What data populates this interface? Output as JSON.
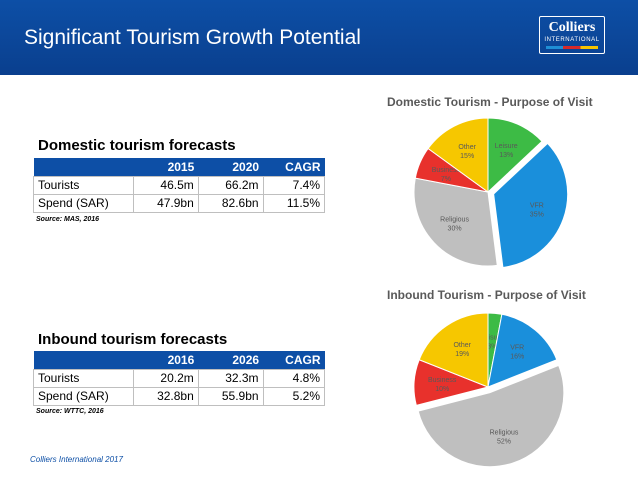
{
  "header": {
    "title": "Significant Tourism Growth Potential",
    "logo_main": "Colliers",
    "logo_sub": "INTERNATIONAL"
  },
  "domestic": {
    "title": "Domestic tourism forecasts",
    "columns": [
      "",
      "2015",
      "2020",
      "CAGR"
    ],
    "rows": [
      [
        "Tourists",
        "46.5m",
        "66.2m",
        "7.4%"
      ],
      [
        "Spend (SAR)",
        "47.9bn",
        "82.6bn",
        "11.5%"
      ]
    ],
    "source": "Source: MAS, 2016"
  },
  "inbound": {
    "title": "Inbound tourism forecasts",
    "columns": [
      "",
      "2016",
      "2026",
      "CAGR"
    ],
    "rows": [
      [
        "Tourists",
        "20.2m",
        "32.3m",
        "4.8%"
      ],
      [
        "Spend (SAR)",
        "32.8bn",
        "55.9bn",
        "5.2%"
      ]
    ],
    "source": "Source: WTTC, 2016"
  },
  "footer": "Colliers International 2017",
  "chart_data": [
    {
      "type": "pie",
      "title": "Domestic Tourism - Purpose of Visit",
      "categories": [
        "Leisure",
        "VFR",
        "Religious",
        "Business",
        "Other"
      ],
      "values": [
        13,
        35,
        30,
        7,
        15
      ],
      "colors": [
        "#3dbb45",
        "#1a8fdb",
        "#bfbfbf",
        "#e8312c",
        "#f6c700"
      ]
    },
    {
      "type": "pie",
      "title": "Inbound Tourism - Purpose of Visit",
      "categories": [
        "Leisure",
        "VFR",
        "Religious",
        "Business",
        "Other"
      ],
      "values": [
        3,
        16,
        52,
        10,
        19
      ],
      "colors": [
        "#3dbb45",
        "#1a8fdb",
        "#bfbfbf",
        "#e8312c",
        "#f6c700"
      ]
    }
  ]
}
